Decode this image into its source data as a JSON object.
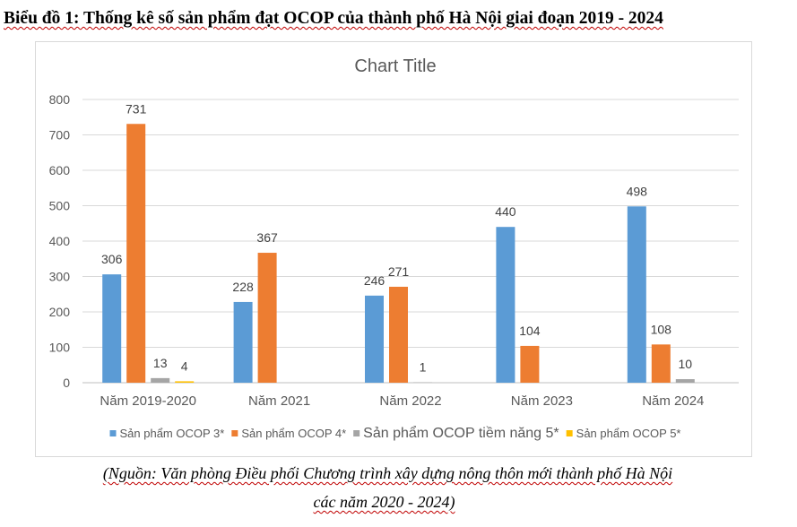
{
  "document": {
    "heading": "Biểu đồ 1: Thống kê số sản phẩm đạt OCOP của thành phố Hà Nội giai đoạn 2019 - 2024",
    "source_line1": "(Nguồn: Văn phòng Điều phối Chương trình xây dựng nông thôn mới thành phố Hà Nội",
    "source_line2": "các năm 2020 - 2024)"
  },
  "chart_data": {
    "type": "bar",
    "title": "Chart Title",
    "xlabel": "",
    "ylabel": "",
    "ylim": [
      0,
      800
    ],
    "yticks": [
      0,
      100,
      200,
      300,
      400,
      500,
      600,
      700,
      800
    ],
    "grid": true,
    "legend_position": "bottom",
    "categories": [
      "Năm 2019-2020",
      "Năm 2021",
      "Năm 2022",
      "Năm 2023",
      "Năm 2024"
    ],
    "series": [
      {
        "name": "Sản phẩm OCOP 3*",
        "color": "#5b9bd5",
        "values": [
          306,
          228,
          246,
          440,
          498
        ],
        "labels": [
          "306",
          "228",
          "246",
          "440",
          "498"
        ]
      },
      {
        "name": "Sản phẩm OCOP 4*",
        "color": "#ed7d31",
        "values": [
          731,
          367,
          271,
          104,
          108
        ],
        "labels": [
          "731",
          "367",
          "271",
          "104",
          "108"
        ]
      },
      {
        "name": "Sản phẩm OCOP tiềm năng 5*",
        "color": "#a5a5a5",
        "values": [
          13,
          0,
          1,
          0,
          10
        ],
        "labels": [
          "13",
          "",
          "1",
          "",
          "10"
        ]
      },
      {
        "name": "Sản phẩm OCOP 5*",
        "color": "#ffc000",
        "values": [
          4,
          0,
          0,
          0,
          0
        ],
        "labels": [
          "4",
          "",
          "",
          "",
          ""
        ]
      }
    ]
  }
}
